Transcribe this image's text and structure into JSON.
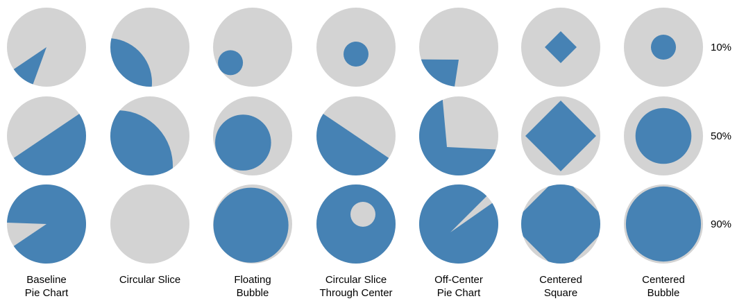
{
  "colors": {
    "background_circle": "#d3d3d3",
    "foreground": "#4682b4"
  },
  "columns": [
    {
      "id": "baseline-pie-chart",
      "label_lines": [
        "Baseline",
        "Pie Chart"
      ]
    },
    {
      "id": "circular-slice",
      "label_lines": [
        "Circular Slice"
      ]
    },
    {
      "id": "floating-bubble",
      "label_lines": [
        "Floating",
        "Bubble"
      ]
    },
    {
      "id": "circular-slice-through-center",
      "label_lines": [
        "Circular Slice",
        "Through Center"
      ]
    },
    {
      "id": "off-center-pie-chart",
      "label_lines": [
        "Off-Center",
        "Pie Chart"
      ]
    },
    {
      "id": "centered-square",
      "label_lines": [
        "Centered",
        "Square"
      ]
    },
    {
      "id": "centered-bubble",
      "label_lines": [
        "Centered",
        "Bubble"
      ]
    }
  ],
  "rows": [
    {
      "label": "10%",
      "fraction": 0.1
    },
    {
      "label": "50%",
      "fraction": 0.5
    },
    {
      "label": "90%",
      "fraction": 0.9
    }
  ]
}
